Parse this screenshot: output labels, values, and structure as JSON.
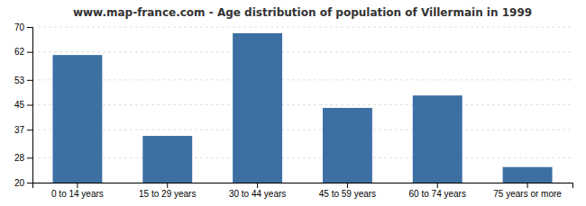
{
  "chart_data": {
    "type": "bar",
    "title": "www.map-france.com - Age distribution of population of Villermain in 1999",
    "categories": [
      "0 to 14 years",
      "15 to 29 years",
      "30 to 44 years",
      "45 to 59 years",
      "60 to 74 years",
      "75 years or more"
    ],
    "values": [
      61,
      35,
      68,
      44,
      48,
      25
    ],
    "color": "#3d6fa3",
    "ylim": [
      20,
      70
    ],
    "yticks": [
      20,
      28,
      37,
      45,
      53,
      62,
      70
    ],
    "grid": true
  }
}
